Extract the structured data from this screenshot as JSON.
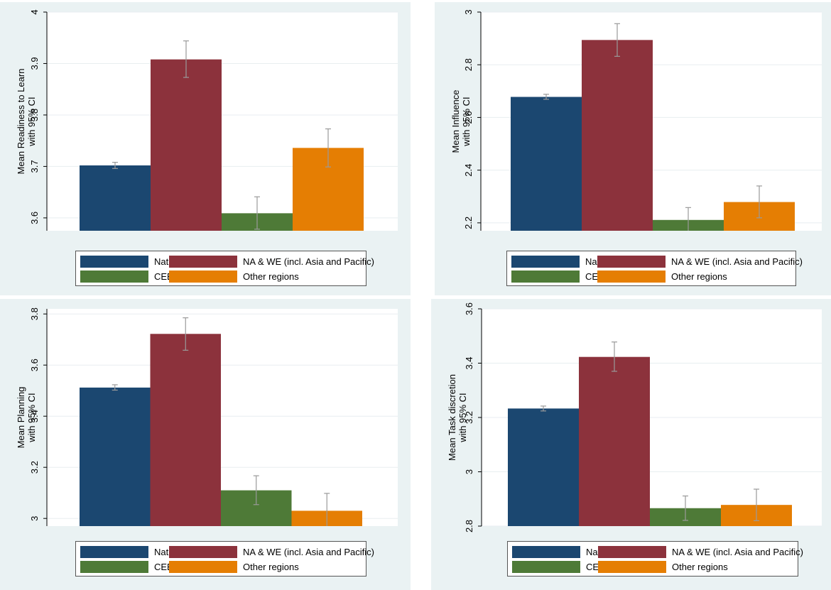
{
  "colors": {
    "Native": "#1b4770",
    "NA & WE (incl. Asia and Pacific)": "#8c323c",
    "CEE": "#4e7a37",
    "Other regions": "#e57e03"
  },
  "legend": {
    "items": [
      {
        "label": "Native",
        "color": "#1b4770"
      },
      {
        "label": "NA & WE (incl. Asia and Pacific)",
        "color": "#8c323c"
      },
      {
        "label": "CEE",
        "color": "#4e7a37"
      },
      {
        "label": "Other regions",
        "color": "#e57e03"
      }
    ]
  },
  "chart_data": [
    {
      "type": "bar",
      "position": "top-left",
      "title": "",
      "ylabel_line1": "Mean Readiness to Learn",
      "ylabel_line2": "with 95% CI",
      "ylim": [
        3.575,
        4.0
      ],
      "yticks": [
        3.6,
        3.7,
        3.8,
        3.9,
        4
      ],
      "ytick_labels": [
        "3.6",
        "3.7",
        "3.8",
        "3.9",
        "4"
      ],
      "categories": [
        "Native",
        "NA & WE (incl. Asia and Pacific)",
        "CEE",
        "Other regions"
      ],
      "values": [
        3.702,
        3.908,
        3.609,
        3.736
      ],
      "ci_low": [
        3.696,
        3.873,
        3.578,
        3.699
      ],
      "ci_high": [
        3.708,
        3.944,
        3.641,
        3.773
      ]
    },
    {
      "type": "bar",
      "position": "top-right",
      "title": "",
      "ylabel_line1": "Mean Influence",
      "ylabel_line2": "with 95% CI",
      "ylim": [
        2.17,
        3.0
      ],
      "yticks": [
        2.2,
        2.4,
        2.6,
        2.8,
        3
      ],
      "ytick_labels": [
        "2.2",
        "2.4",
        "2.6",
        "2.8",
        "3"
      ],
      "categories": [
        "Native",
        "NA & WE (incl. Asia and Pacific)",
        "CEE",
        "Other regions"
      ],
      "values": [
        2.678,
        2.894,
        2.211,
        2.279
      ],
      "ci_low": [
        2.669,
        2.832,
        2.165,
        2.219
      ],
      "ci_high": [
        2.688,
        2.956,
        2.258,
        2.34
      ]
    },
    {
      "type": "bar",
      "position": "bottom-left",
      "title": "",
      "ylabel_line1": "Mean Planning",
      "ylabel_line2": "with 95% CI",
      "ylim": [
        2.97,
        3.82
      ],
      "yticks": [
        3,
        3.2,
        3.4,
        3.6,
        3.8
      ],
      "ytick_labels": [
        "3",
        "3.2",
        "3.4",
        "3.6",
        "3.8"
      ],
      "categories": [
        "Native",
        "NA & WE (incl. Asia and Pacific)",
        "CEE",
        "Other regions"
      ],
      "values": [
        3.512,
        3.722,
        3.11,
        3.03
      ],
      "ci_low": [
        3.502,
        3.658,
        3.054,
        2.962
      ],
      "ci_high": [
        3.523,
        3.785,
        3.167,
        3.098
      ]
    },
    {
      "type": "bar",
      "position": "bottom-right",
      "title": "",
      "ylabel_line1": "Mean Task discretion",
      "ylabel_line2": "with 95% CI",
      "ylim": [
        2.8,
        3.6
      ],
      "yticks": [
        2.8,
        3,
        3.2,
        3.4,
        3.6
      ],
      "ytick_labels": [
        "2.8",
        "3",
        "3.2",
        "3.4",
        "3.6"
      ],
      "categories": [
        "Native",
        "NA & WE (incl. Asia and Pacific)",
        "CEE",
        "Other regions"
      ],
      "values": [
        3.233,
        3.423,
        2.866,
        2.878
      ],
      "ci_low": [
        3.224,
        3.37,
        2.821,
        2.82
      ],
      "ci_high": [
        3.242,
        3.478,
        2.911,
        2.936
      ]
    }
  ]
}
